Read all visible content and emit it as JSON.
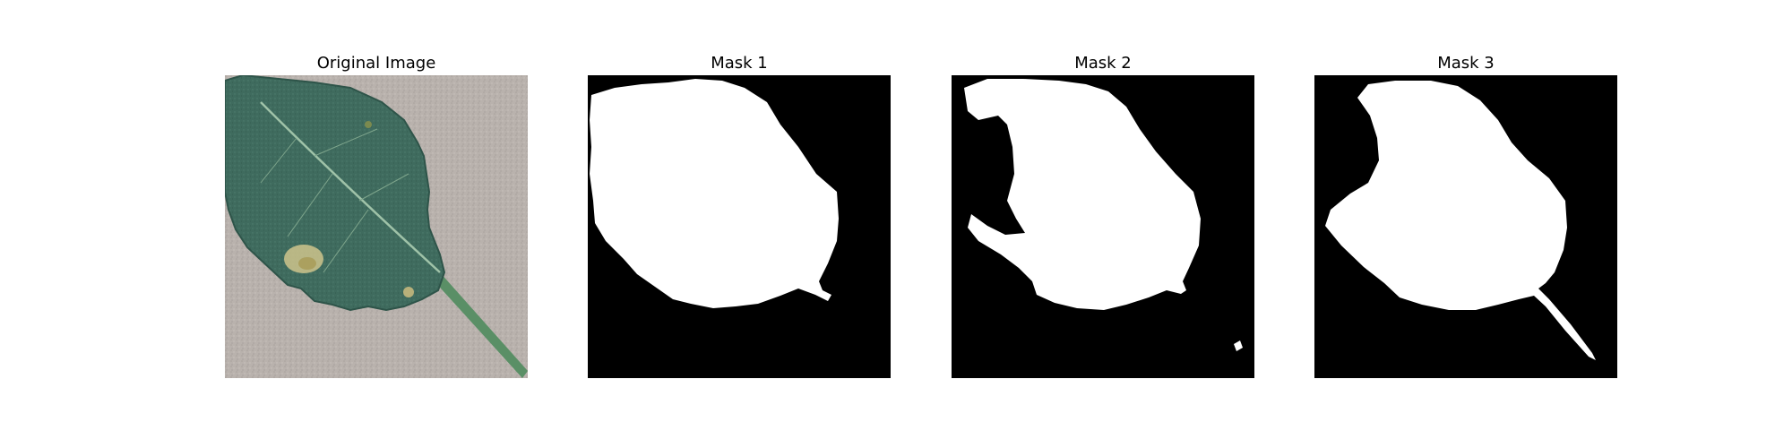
{
  "figure": {
    "panels": [
      {
        "title": "Original Image",
        "kind": "photo",
        "subject": "leaf-photo"
      },
      {
        "title": "Mask 1",
        "kind": "mask",
        "foreground_color": "#ffffff",
        "background_color": "#000000"
      },
      {
        "title": "Mask 2",
        "kind": "mask",
        "foreground_color": "#ffffff",
        "background_color": "#000000"
      },
      {
        "title": "Mask 3",
        "kind": "mask",
        "foreground_color": "#ffffff",
        "background_color": "#000000"
      }
    ]
  },
  "colors": {
    "leaf": "#3f6b5e",
    "leaf_dark": "#2e5449",
    "vein": "#9fc2a8",
    "stem": "#5a8f66",
    "background_photo": "#b9b2ad",
    "lesion": "#c7c08a"
  }
}
